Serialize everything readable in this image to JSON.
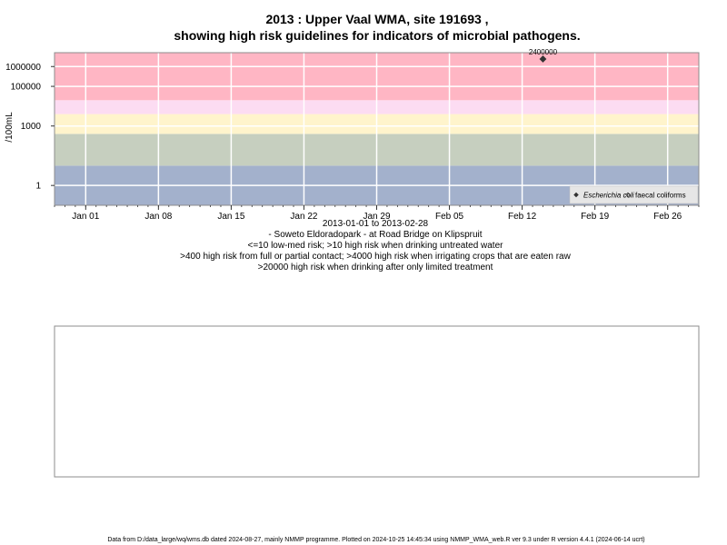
{
  "chart_data": {
    "type": "scatter",
    "title": "2013 : Upper Vaal WMA, site 191693 ,",
    "subtitle": "showing high risk guidelines for indicators of microbial pathogens.",
    "ylabel": "/100mL",
    "yscale": "log",
    "ylim": [
      0.1,
      5000000
    ],
    "xlim": [
      "2012-12-29",
      "2013-03-01"
    ],
    "y_ticks": [
      {
        "value": 1,
        "label": "1"
      },
      {
        "value": 1000,
        "label": "1000"
      },
      {
        "value": 100000,
        "label": "100000"
      },
      {
        "value": 1000000,
        "label": "1000000"
      }
    ],
    "x_ticks": [
      {
        "date": "2013-01-01",
        "label": "Jan 01"
      },
      {
        "date": "2013-01-08",
        "label": "Jan 08"
      },
      {
        "date": "2013-01-15",
        "label": "Jan 15"
      },
      {
        "date": "2013-01-22",
        "label": "Jan 22"
      },
      {
        "date": "2013-01-29",
        "label": "Jan 29"
      },
      {
        "date": "2013-02-05",
        "label": "Feb 05"
      },
      {
        "date": "2013-02-12",
        "label": "Feb 12"
      },
      {
        "date": "2013-02-19",
        "label": "Feb 19"
      },
      {
        "date": "2013-02-26",
        "label": "Feb 26"
      }
    ],
    "bands": [
      {
        "from": 0.1,
        "to": 10,
        "color": "#a3b1cc"
      },
      {
        "from": 10,
        "to": 400,
        "color": "#c6cfbf"
      },
      {
        "from": 400,
        "to": 4000,
        "color": "#fff4cc"
      },
      {
        "from": 4000,
        "to": 20000,
        "color": "#fcdcf2"
      },
      {
        "from": 20000,
        "to": 5000000,
        "color": "#ffb6c4"
      }
    ],
    "grid": true,
    "series": [
      {
        "name": "Escherichia coli",
        "marker": "filled-diamond",
        "color": "#333333",
        "points": [
          {
            "x": "2013-02-14",
            "y": 2400000,
            "label": "2400000"
          }
        ]
      },
      {
        "name": "faecal coliforms",
        "marker": "open-diamond",
        "color": "#333333",
        "points": []
      }
    ],
    "legend_position": "bottom-right",
    "caption": [
      "2013-01-01 to 2013-02-28",
      "- Soweto Eldoradopark - at Road Bridge on Klipspruit",
      "<=10 low-med risk; >10 high risk when drinking untreated water",
      ">400 high risk from full or partial contact; >4000 high risk when irrigating crops that are eaten raw",
      ">20000 high risk when drinking after only limited treatment"
    ]
  },
  "footer": "Data from D:/data_large/wq/wms.db dated 2024-08-27, mainly NMMP programme. Plotted on 2024-10-25 14:45:34 using NMMP_WMA_web.R ver 9.3 under R version 4.4.1 (2024-06-14 ucrt)"
}
